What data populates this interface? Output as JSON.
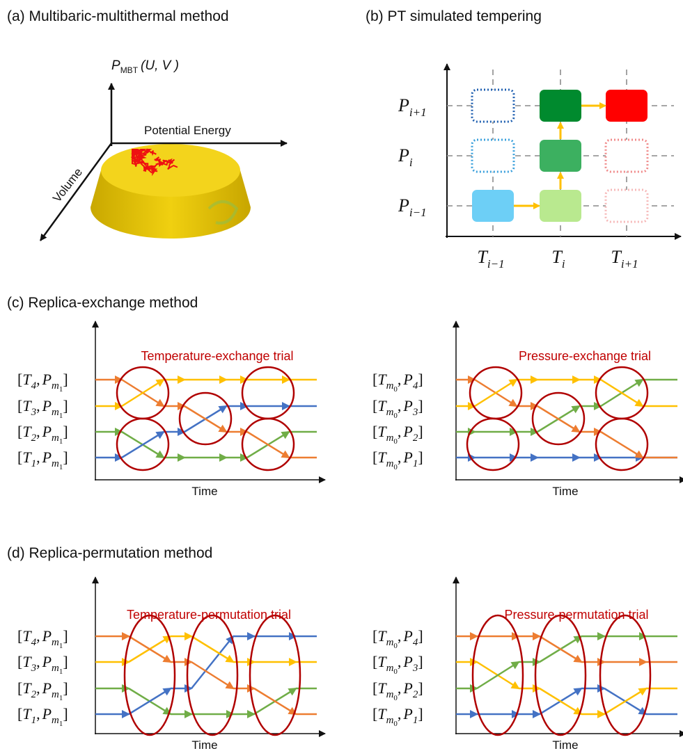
{
  "panel_a": {
    "title": "(a) Multibaric-multithermal method",
    "z_axis": {
      "main": "P",
      "sub": "MBT",
      "args": "(U, V )"
    },
    "x_axis": "Potential Energy",
    "y_axis": "Volume"
  },
  "panel_b": {
    "title": "(b) PT simulated tempering",
    "p_labels": [
      {
        "main": "P",
        "sub": "i+1"
      },
      {
        "main": "P",
        "sub": "i"
      },
      {
        "main": "P",
        "sub": "i−1"
      }
    ],
    "t_labels": [
      {
        "main": "T",
        "sub": "i−1"
      },
      {
        "main": "T",
        "sub": "i"
      },
      {
        "main": "T",
        "sub": "i+1"
      }
    ]
  },
  "panel_c": {
    "title": "(c) Replica-exchange method",
    "left": {
      "trial": "Temperature-exchange trial",
      "x_label": "Time",
      "labels": [
        {
          "open": "[",
          "t": "T",
          "t_sub": "4",
          "comma": ",",
          "p": "P",
          "p_sub": "m",
          "p_sub_sub": "1",
          "close": "]"
        },
        {
          "open": "[",
          "t": "T",
          "t_sub": "3",
          "comma": ",",
          "p": "P",
          "p_sub": "m",
          "p_sub_sub": "1",
          "close": "]"
        },
        {
          "open": "[",
          "t": "T",
          "t_sub": "2",
          "comma": ",",
          "p": "P",
          "p_sub": "m",
          "p_sub_sub": "1",
          "close": "]"
        },
        {
          "open": "[",
          "t": "T",
          "t_sub": "1",
          "comma": ",",
          "p": "P",
          "p_sub": "m",
          "p_sub_sub": "1",
          "close": "]"
        }
      ]
    },
    "right": {
      "trial": "Pressure-exchange trial",
      "x_label": "Time",
      "labels": [
        {
          "open": "[",
          "t": "T",
          "t_sub": "m",
          "t_sub_sub": "0",
          "comma": ",",
          "p": "P",
          "p_sub": "4",
          "close": "]"
        },
        {
          "open": "[",
          "t": "T",
          "t_sub": "m",
          "t_sub_sub": "0",
          "comma": ",",
          "p": "P",
          "p_sub": "3",
          "close": "]"
        },
        {
          "open": "[",
          "t": "T",
          "t_sub": "m",
          "t_sub_sub": "0",
          "comma": ",",
          "p": "P",
          "p_sub": "2",
          "close": "]"
        },
        {
          "open": "[",
          "t": "T",
          "t_sub": "m",
          "t_sub_sub": "0",
          "comma": ",",
          "p": "P",
          "p_sub": "1",
          "close": "]"
        }
      ]
    }
  },
  "panel_d": {
    "title": "(d) Replica-permutation method",
    "left": {
      "trial": "Temperature-permutation trial",
      "x_label": "Time",
      "labels": [
        {
          "open": "[",
          "t": "T",
          "t_sub": "4",
          "comma": ",",
          "p": "P",
          "p_sub": "m",
          "p_sub_sub": "1",
          "close": "]"
        },
        {
          "open": "[",
          "t": "T",
          "t_sub": "3",
          "comma": ",",
          "p": "P",
          "p_sub": "m",
          "p_sub_sub": "1",
          "close": "]"
        },
        {
          "open": "[",
          "t": "T",
          "t_sub": "2",
          "comma": ",",
          "p": "P",
          "p_sub": "m",
          "p_sub_sub": "1",
          "close": "]"
        },
        {
          "open": "[",
          "t": "T",
          "t_sub": "1",
          "comma": ",",
          "p": "P",
          "p_sub": "m",
          "p_sub_sub": "1",
          "close": "]"
        }
      ]
    },
    "right": {
      "trial": "Pressure-permutation trial",
      "x_label": "Time",
      "labels": [
        {
          "open": "[",
          "t": "T",
          "t_sub": "m",
          "t_sub_sub": "0",
          "comma": ",",
          "p": "P",
          "p_sub": "4",
          "close": "]"
        },
        {
          "open": "[",
          "t": "T",
          "t_sub": "m",
          "t_sub_sub": "0",
          "comma": ",",
          "p": "P",
          "p_sub": "3",
          "close": "]"
        },
        {
          "open": "[",
          "t": "T",
          "t_sub": "m",
          "t_sub_sub": "0",
          "comma": ",",
          "p": "P",
          "p_sub": "2",
          "close": "]"
        },
        {
          "open": "[",
          "t": "T",
          "t_sub": "m",
          "t_sub_sub": "0",
          "comma": ",",
          "p": "P",
          "p_sub": "1",
          "close": "]"
        }
      ]
    }
  }
}
